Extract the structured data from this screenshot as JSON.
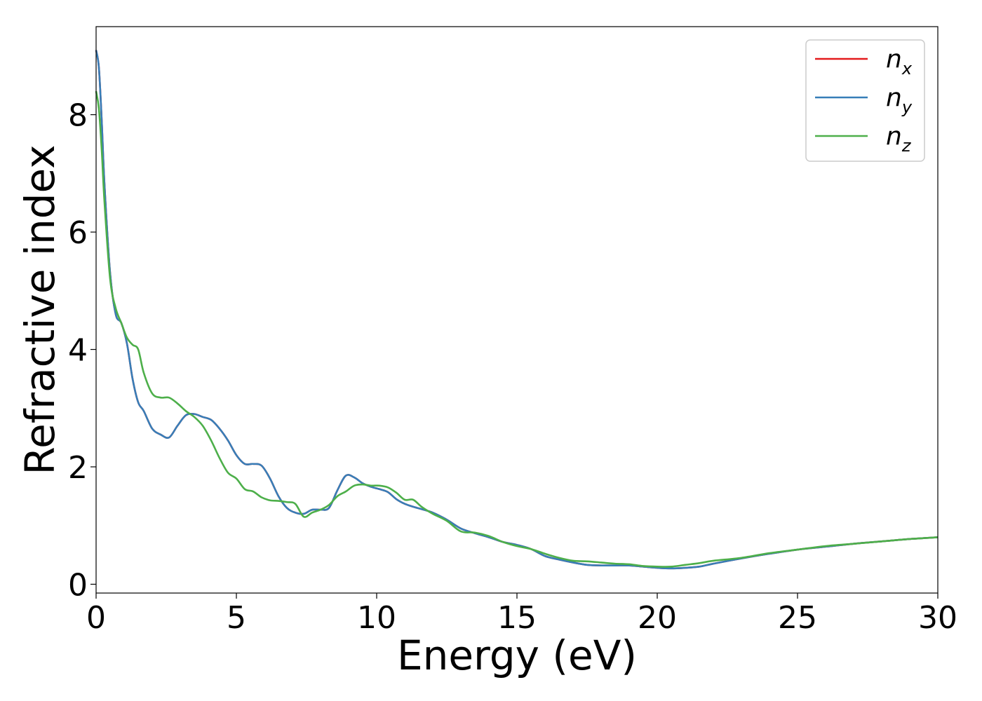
{
  "chart_data": {
    "type": "line",
    "title": "",
    "xlabel": "Energy (eV)",
    "ylabel": "Refractive index",
    "xlim": [
      0,
      30
    ],
    "ylim": [
      -0.15,
      9.5
    ],
    "xticks": [
      0,
      5,
      10,
      15,
      20,
      25,
      30
    ],
    "yticks": [
      0,
      2,
      4,
      6,
      8
    ],
    "grid": false,
    "legend_position": "top-right",
    "x": [
      0,
      0.1,
      0.2,
      0.3,
      0.5,
      0.7,
      0.9,
      1.1,
      1.3,
      1.5,
      1.7,
      2.0,
      2.3,
      2.6,
      2.9,
      3.2,
      3.5,
      3.8,
      4.1,
      4.4,
      4.7,
      5.0,
      5.3,
      5.6,
      5.9,
      6.2,
      6.5,
      6.8,
      7.1,
      7.4,
      7.7,
      8.0,
      8.3,
      8.6,
      8.9,
      9.2,
      9.5,
      9.8,
      10.1,
      10.4,
      10.7,
      11.0,
      11.3,
      11.6,
      12.0,
      12.5,
      13.0,
      13.5,
      14.0,
      14.5,
      15.0,
      15.5,
      16.0,
      16.5,
      17.0,
      17.5,
      18.0,
      18.5,
      19.0,
      19.5,
      20.0,
      20.5,
      21.0,
      21.5,
      22.0,
      23.0,
      24.0,
      25.0,
      26.0,
      27.0,
      28.0,
      29.0,
      30.0
    ],
    "series": [
      {
        "name": "n_x",
        "label_main": "n",
        "label_sub": "x",
        "color": "#e41a1c",
        "values": [
          9.1,
          8.8,
          7.9,
          6.8,
          5.3,
          4.6,
          4.45,
          4.1,
          3.5,
          3.1,
          2.95,
          2.65,
          2.55,
          2.5,
          2.7,
          2.88,
          2.9,
          2.85,
          2.8,
          2.65,
          2.45,
          2.2,
          2.05,
          2.05,
          2.02,
          1.8,
          1.5,
          1.3,
          1.22,
          1.2,
          1.27,
          1.27,
          1.3,
          1.6,
          1.85,
          1.82,
          1.72,
          1.66,
          1.62,
          1.57,
          1.45,
          1.37,
          1.32,
          1.28,
          1.22,
          1.1,
          0.95,
          0.87,
          0.8,
          0.72,
          0.67,
          0.6,
          0.48,
          0.42,
          0.37,
          0.33,
          0.32,
          0.32,
          0.32,
          0.3,
          0.28,
          0.27,
          0.28,
          0.3,
          0.35,
          0.44,
          0.52,
          0.59,
          0.64,
          0.69,
          0.73,
          0.77,
          0.8
        ]
      },
      {
        "name": "n_y",
        "label_main": "n",
        "label_sub": "y",
        "color": "#377eb8",
        "values": [
          9.1,
          8.8,
          7.9,
          6.8,
          5.3,
          4.6,
          4.45,
          4.1,
          3.5,
          3.1,
          2.95,
          2.65,
          2.55,
          2.5,
          2.7,
          2.88,
          2.9,
          2.85,
          2.8,
          2.65,
          2.45,
          2.2,
          2.05,
          2.05,
          2.02,
          1.8,
          1.5,
          1.3,
          1.22,
          1.2,
          1.27,
          1.27,
          1.3,
          1.6,
          1.85,
          1.82,
          1.72,
          1.66,
          1.62,
          1.57,
          1.45,
          1.37,
          1.32,
          1.28,
          1.22,
          1.1,
          0.95,
          0.87,
          0.8,
          0.72,
          0.67,
          0.6,
          0.48,
          0.42,
          0.37,
          0.33,
          0.32,
          0.32,
          0.32,
          0.3,
          0.28,
          0.27,
          0.28,
          0.3,
          0.35,
          0.44,
          0.52,
          0.59,
          0.64,
          0.69,
          0.73,
          0.77,
          0.8
        ]
      },
      {
        "name": "n_z",
        "label_main": "n",
        "label_sub": "z",
        "color": "#4daf4a",
        "values": [
          8.4,
          8.1,
          7.4,
          6.5,
          5.2,
          4.7,
          4.45,
          4.2,
          4.08,
          4.0,
          3.6,
          3.25,
          3.18,
          3.18,
          3.08,
          2.95,
          2.85,
          2.7,
          2.45,
          2.15,
          1.9,
          1.8,
          1.62,
          1.58,
          1.48,
          1.43,
          1.42,
          1.4,
          1.37,
          1.15,
          1.22,
          1.27,
          1.35,
          1.5,
          1.58,
          1.68,
          1.7,
          1.68,
          1.68,
          1.65,
          1.56,
          1.44,
          1.44,
          1.32,
          1.2,
          1.08,
          0.9,
          0.88,
          0.82,
          0.72,
          0.65,
          0.6,
          0.52,
          0.45,
          0.4,
          0.39,
          0.37,
          0.35,
          0.34,
          0.31,
          0.3,
          0.3,
          0.33,
          0.36,
          0.4,
          0.45,
          0.53,
          0.59,
          0.65,
          0.69,
          0.73,
          0.77,
          0.8
        ]
      }
    ]
  }
}
